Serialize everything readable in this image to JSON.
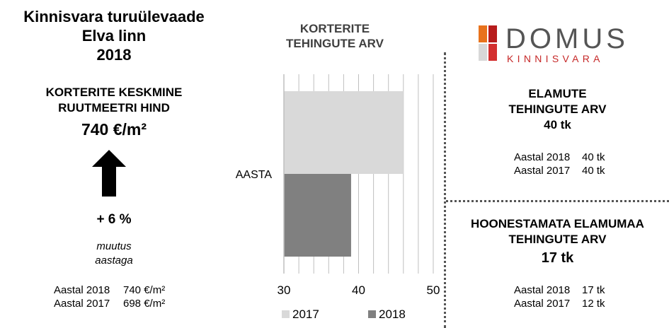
{
  "left": {
    "title_line1": "Kinnisvara turuülevaade",
    "title_line2": "Elva linn",
    "title_line3": "2018",
    "kpi_line1": "KORTERITE KESKMINE",
    "kpi_line2": "RUUTMEETRI HIND",
    "kpi_value": "740 €/m²",
    "change": "+ 6 %",
    "change_note1": "muutus",
    "change_note2": "aastaga",
    "rows": [
      {
        "label": "Aastal 2018",
        "value": "740 €/m²"
      },
      {
        "label": "Aastal 2017",
        "value": "698 €/m²"
      }
    ]
  },
  "chart": {
    "title_line1": "KORTERITE",
    "title_line2": "TEHINGUTE ARV"
  },
  "chart_data": {
    "type": "bar",
    "orientation": "horizontal",
    "categories": [
      "AASTA"
    ],
    "series": [
      {
        "name": "2017",
        "values": [
          46
        ],
        "color": "#d9d9d9"
      },
      {
        "name": "2018",
        "values": [
          39
        ],
        "color": "#808080"
      }
    ],
    "xlim": [
      30,
      50
    ],
    "xticks": [
      "30",
      "40",
      "50"
    ],
    "grid": true,
    "legend": "bottom"
  },
  "logo": {
    "word1": "DOMUS",
    "word2": "KINNISVARA",
    "colors": [
      "#e8721c",
      "#b71c1c",
      "#d8d8d8",
      "#d32f2f"
    ]
  },
  "elamud": {
    "title_line1": "ELAMUTE",
    "title_line2": "TEHINGUTE ARV",
    "value": "40 tk",
    "rows": [
      {
        "label": "Aastal 2018",
        "value": "40 tk"
      },
      {
        "label": "Aastal 2017",
        "value": "40 tk"
      }
    ]
  },
  "maa": {
    "title_line1": "HOONESTAMATA ELAMUMAA",
    "title_line2": "TEHINGUTE ARV",
    "value": "17 tk",
    "rows": [
      {
        "label": "Aastal 2018",
        "value": "17 tk"
      },
      {
        "label": "Aastal 2017",
        "value": "12 tk"
      }
    ]
  }
}
